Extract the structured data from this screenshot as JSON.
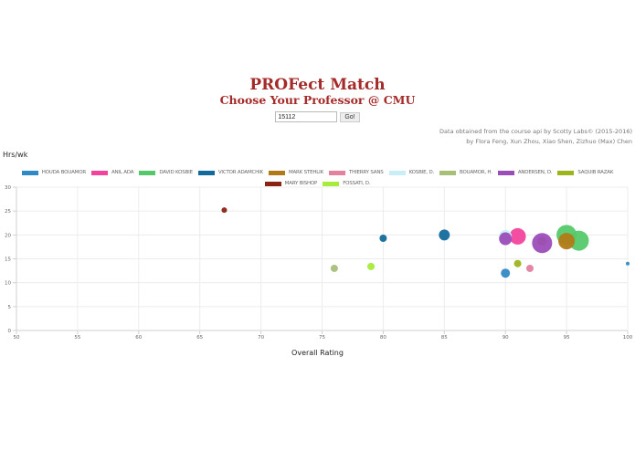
{
  "header": {
    "title": "PROFect Match",
    "subtitle": "Choose Your Professor @ CMU"
  },
  "search": {
    "value": "15112",
    "button_label": "Go!"
  },
  "credits": {
    "line1": "Data obtained from the course api by Scotty Labs© (2015-2016)",
    "line2": "by Flora Feng, Xun Zhou, Xiao Shen, Zizhuo (Max) Chen"
  },
  "chart_data": {
    "type": "scatter",
    "bubble": true,
    "title": "",
    "xlabel": "Overall Rating",
    "ylabel": "Hrs/wk",
    "xlim": [
      50,
      100
    ],
    "ylim": [
      0,
      30
    ],
    "x_ticks": [
      50,
      55,
      60,
      65,
      70,
      75,
      80,
      85,
      90,
      95,
      100
    ],
    "y_ticks": [
      0,
      5,
      10,
      15,
      20,
      25,
      30
    ],
    "grid": true,
    "legend_position": "top",
    "series": [
      {
        "name": "HOUDA BOUAMOR",
        "color": "#2f8ac4",
        "points": [
          {
            "x": 90,
            "y": 12,
            "r": 5
          },
          {
            "x": 100,
            "y": 14,
            "r": 2
          }
        ]
      },
      {
        "name": "ANIL ADA",
        "color": "#f2449c",
        "points": [
          {
            "x": 91,
            "y": 19.7,
            "r": 9
          }
        ]
      },
      {
        "name": "DAVID KOSBIE",
        "color": "#55c96a",
        "points": [
          {
            "x": 95,
            "y": 20,
            "r": 11
          },
          {
            "x": 96,
            "y": 18.8,
            "r": 11
          }
        ]
      },
      {
        "name": "VICTOR ADAMCHIK",
        "color": "#136b9b",
        "points": [
          {
            "x": 80,
            "y": 19.3,
            "r": 4
          },
          {
            "x": 85,
            "y": 20,
            "r": 6
          }
        ]
      },
      {
        "name": "MARK STEHLIK",
        "color": "#b27a17",
        "points": [
          {
            "x": 93,
            "y": 18.7,
            "r": 5
          },
          {
            "x": 95,
            "y": 18.7,
            "r": 9
          }
        ]
      },
      {
        "name": "THIERRY SANS",
        "color": "#e3819f",
        "points": [
          {
            "x": 92,
            "y": 13,
            "r": 4
          }
        ]
      },
      {
        "name": "KOSBIE, D.",
        "color": "#c8eff7",
        "points": [
          {
            "x": 90,
            "y": 19.7,
            "r": 7
          }
        ]
      },
      {
        "name": "BOUAMOR, H.",
        "color": "#a8bf7a",
        "points": [
          {
            "x": 76,
            "y": 13,
            "r": 4
          }
        ]
      },
      {
        "name": "ANDERSEN, D.",
        "color": "#9b4db8",
        "points": [
          {
            "x": 90,
            "y": 19.2,
            "r": 7
          },
          {
            "x": 93,
            "y": 18.3,
            "r": 11
          }
        ]
      },
      {
        "name": "SAQUIB RAZAK",
        "color": "#9cb51c",
        "points": [
          {
            "x": 91,
            "y": 14,
            "r": 4
          }
        ]
      },
      {
        "name": "MARY BISHOP",
        "color": "#8b2315",
        "points": [
          {
            "x": 67,
            "y": 25.2,
            "r": 3
          }
        ]
      },
      {
        "name": "FOSSATI, D.",
        "color": "#a7ec3a",
        "points": [
          {
            "x": 79,
            "y": 13.4,
            "r": 4
          }
        ]
      }
    ]
  }
}
